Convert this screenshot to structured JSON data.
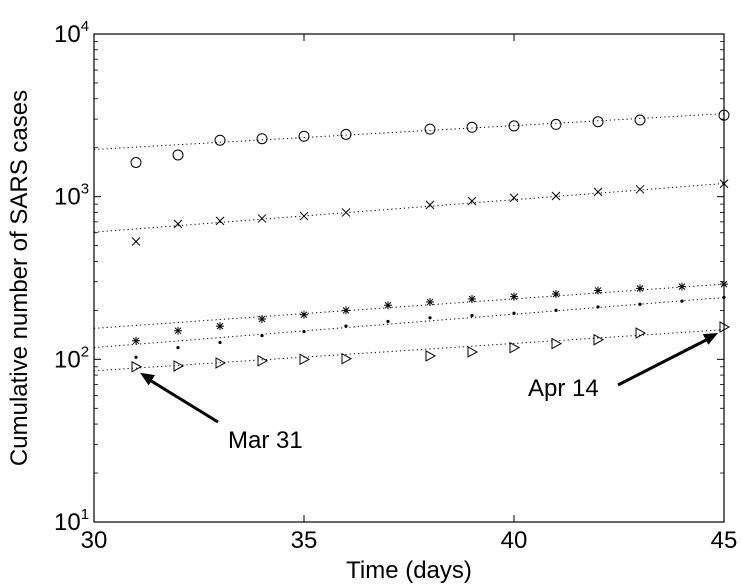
{
  "chart_data": {
    "type": "scatter",
    "title": "",
    "xlabel": "Time (days)",
    "ylabel": "Cumulative number of SARS cases",
    "xlim": [
      30,
      45
    ],
    "ylim": [
      10,
      10000
    ],
    "yscale": "log",
    "grid": false,
    "x_ticks": [
      "30",
      "35",
      "40",
      "45"
    ],
    "y_ticks": [
      {
        "base": "10",
        "exp": "1",
        "value": 10
      },
      {
        "base": "10",
        "exp": "2",
        "value": 100
      },
      {
        "base": "10",
        "exp": "3",
        "value": 1000
      },
      {
        "base": "10",
        "exp": "4",
        "value": 10000
      }
    ],
    "series": [
      {
        "marker": "circle",
        "x": [
          31,
          32,
          33,
          34,
          35,
          36,
          38,
          39,
          40,
          41,
          42,
          43,
          45
        ],
        "y": [
          1622,
          1804,
          2223,
          2271,
          2353,
          2416,
          2601,
          2671,
          2722,
          2781,
          2890,
          2960,
          3169
        ],
        "fit": [
          1950,
          3238
        ]
      },
      {
        "marker": "x",
        "x": [
          31,
          32,
          33,
          34,
          35,
          36,
          38,
          39,
          40,
          41,
          42,
          43,
          45
        ],
        "y": [
          530,
          680,
          710,
          735,
          760,
          800,
          890,
          940,
          985,
          1010,
          1070,
          1110,
          1200
        ],
        "fit": [
          605,
          1205
        ]
      },
      {
        "marker": "star",
        "x": [
          31,
          32,
          33,
          34,
          35,
          36,
          37,
          38,
          39,
          40,
          41,
          42,
          43,
          44,
          45
        ],
        "y": [
          130,
          150,
          160,
          177,
          188,
          200,
          215,
          225,
          235,
          243,
          252,
          265,
          273,
          280,
          290
        ],
        "fit": [
          155,
          290
        ]
      },
      {
        "marker": "dot",
        "x": [
          31,
          32,
          33,
          34,
          35,
          36,
          37,
          38,
          39,
          40,
          41,
          42,
          43,
          44,
          45
        ],
        "y": [
          103,
          118,
          127,
          140,
          148,
          160,
          171,
          180,
          186,
          192,
          200,
          210,
          218,
          228,
          240
        ],
        "fit": [
          118,
          240
        ]
      },
      {
        "marker": "triangle-right",
        "x": [
          31,
          32,
          33,
          34,
          35,
          36,
          38,
          39,
          40,
          41,
          42,
          43,
          45
        ],
        "y": [
          90,
          91,
          95,
          98,
          100,
          101,
          105,
          111,
          118,
          125,
          132,
          145,
          158
        ],
        "fit": [
          85,
          152
        ]
      }
    ],
    "annotations": [
      {
        "text": "Mar 31",
        "x": 31,
        "y": 90
      },
      {
        "text": "Apr 14",
        "x": 45,
        "y": 158
      }
    ]
  }
}
